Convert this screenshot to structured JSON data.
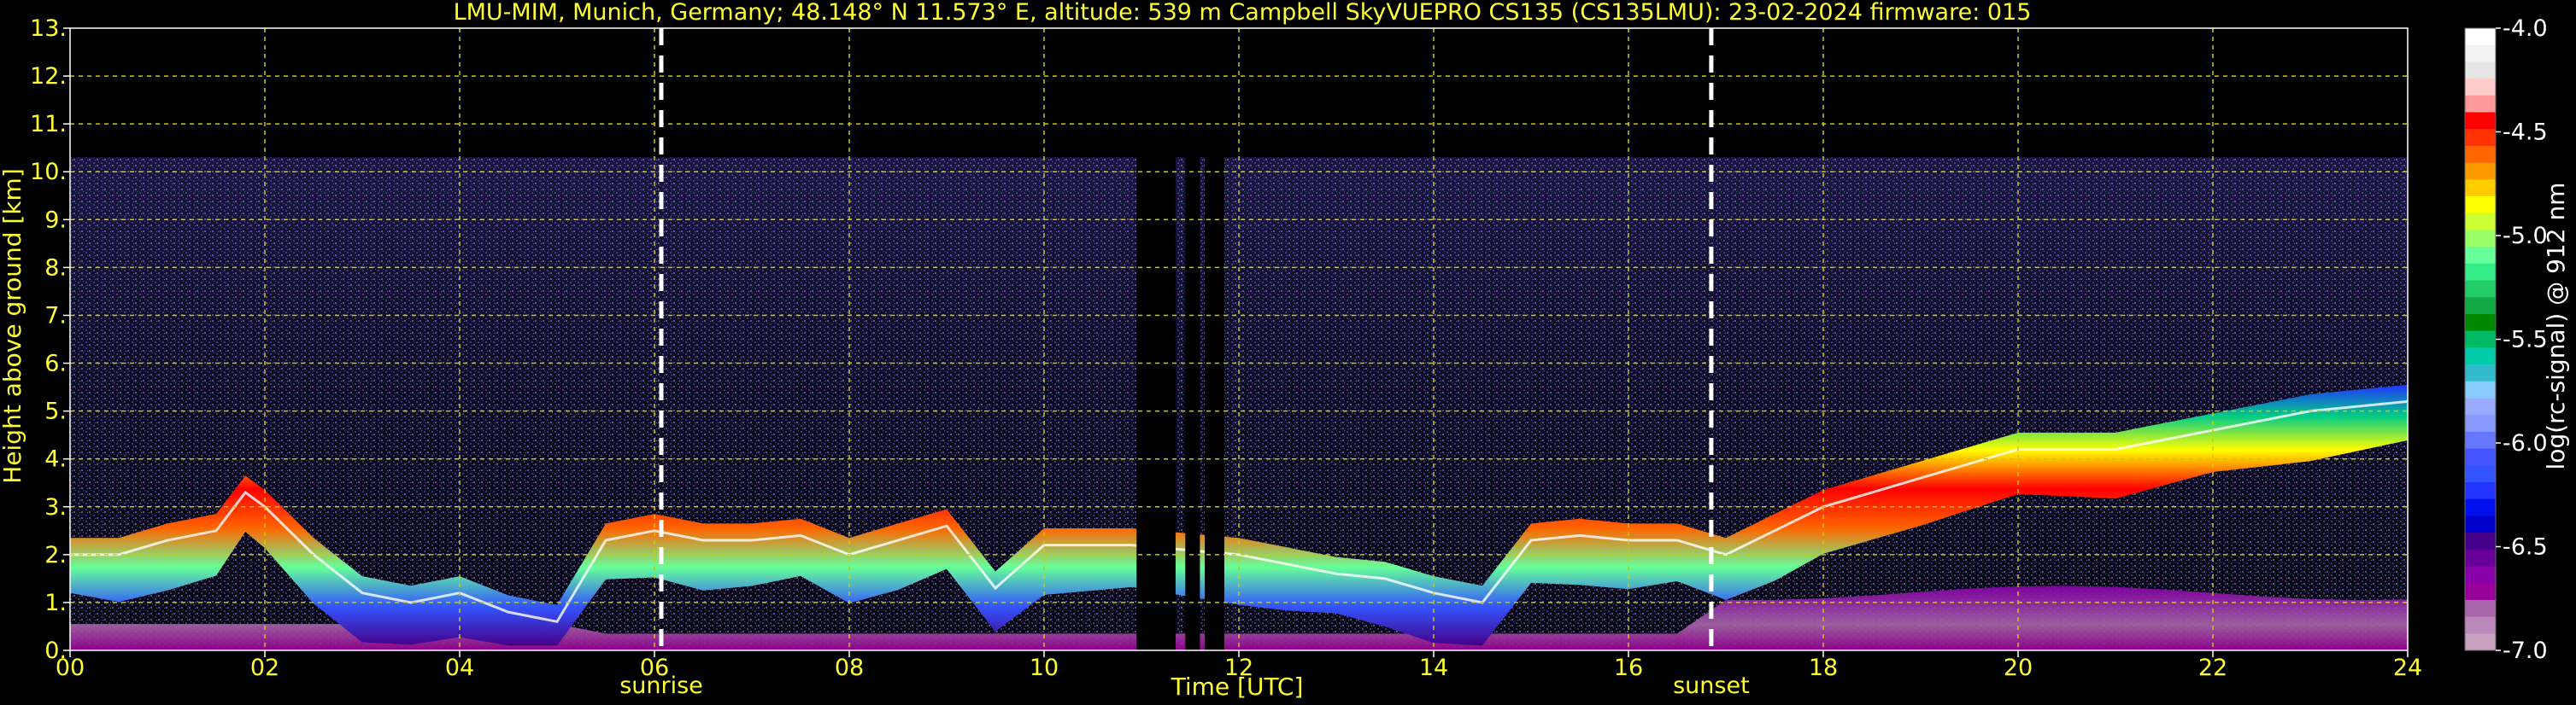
{
  "chart_data": {
    "type": "heatmap",
    "title": "LMU-MIM, Munich, Germany; 48.148° N 11.573° E, altitude: 539 m    Campbell SkyVUEPRO CS135 (CS135LMU): 23-02-2024    firmware: 015",
    "xlabel": "Time [UTC]",
    "ylabel": "Height above ground [km]",
    "xlim": [
      0,
      24
    ],
    "ylim": [
      0,
      13
    ],
    "x_ticks": [
      "00",
      "02",
      "04",
      "06",
      "08",
      "10",
      "12",
      "14",
      "16",
      "18",
      "20",
      "22",
      "24"
    ],
    "y_ticks": [
      "0.",
      "1.",
      "2.",
      "3.",
      "4.",
      "5.",
      "6.",
      "7.",
      "8.",
      "9.",
      "10.",
      "11.",
      "12.",
      "13."
    ],
    "grid": true,
    "events": [
      {
        "label": "sunrise",
        "time": 6.07
      },
      {
        "label": "sunset",
        "time": 16.85
      }
    ],
    "data_gaps": [
      [
        10.95,
        11.35
      ],
      [
        11.45,
        11.6
      ],
      [
        11.65,
        11.85
      ]
    ],
    "signal_top_km": 10.3,
    "aerosol_layer_top_km": [
      [
        0.0,
        2.0
      ],
      [
        0.5,
        2.0
      ],
      [
        1.0,
        2.3
      ],
      [
        1.5,
        2.5
      ],
      [
        1.8,
        3.3
      ],
      [
        2.0,
        3.0
      ],
      [
        2.5,
        2.0
      ],
      [
        3.0,
        1.2
      ],
      [
        3.5,
        1.0
      ],
      [
        4.0,
        1.2
      ],
      [
        4.5,
        0.8
      ],
      [
        5.0,
        0.6
      ],
      [
        5.5,
        2.3
      ],
      [
        6.0,
        2.5
      ],
      [
        6.5,
        2.3
      ],
      [
        7.0,
        2.3
      ],
      [
        7.5,
        2.4
      ],
      [
        8.0,
        2.0
      ],
      [
        8.5,
        2.3
      ],
      [
        9.0,
        2.6
      ],
      [
        9.5,
        1.3
      ],
      [
        10.0,
        2.2
      ],
      [
        10.9,
        2.2
      ],
      [
        12.0,
        2.0
      ],
      [
        12.5,
        1.8
      ],
      [
        13.0,
        1.6
      ],
      [
        13.5,
        1.5
      ],
      [
        14.0,
        1.2
      ],
      [
        14.5,
        1.0
      ],
      [
        15.0,
        2.3
      ],
      [
        15.5,
        2.4
      ],
      [
        16.0,
        2.3
      ],
      [
        16.5,
        2.3
      ],
      [
        17.0,
        2.0
      ],
      [
        17.5,
        2.5
      ],
      [
        18.0,
        3.0
      ],
      [
        19.0,
        3.6
      ],
      [
        20.0,
        4.2
      ],
      [
        21.0,
        4.2
      ],
      [
        22.0,
        4.6
      ],
      [
        23.0,
        5.0
      ],
      [
        24.0,
        5.2
      ]
    ],
    "colorbar": {
      "label": "log(rc-signal) @ 912 nm",
      "range": [
        -7.0,
        -4.0
      ],
      "ticks": [
        "-4.0",
        "-4.5",
        "-5.0",
        "-5.5",
        "-6.0",
        "-6.5",
        "-7.0"
      ],
      "colors": [
        "#ffffff",
        "#f2f2f2",
        "#e6e6e6",
        "#ffcccc",
        "#ff9999",
        "#ff0000",
        "#ff3300",
        "#ff6600",
        "#ff9900",
        "#ffcc00",
        "#ffff00",
        "#ccff33",
        "#99ff66",
        "#66ff99",
        "#33ee88",
        "#22cc66",
        "#11aa44",
        "#008800",
        "#00bb66",
        "#00ccaa",
        "#33bbcc",
        "#88ccff",
        "#99aaff",
        "#8899ff",
        "#6677ff",
        "#4455ff",
        "#3355ff",
        "#2233ff",
        "#0011ee",
        "#0000cc",
        "#440088",
        "#660099",
        "#8800aa",
        "#990099",
        "#aa66aa",
        "#bb88bb",
        "#c8a0c0"
      ]
    }
  }
}
